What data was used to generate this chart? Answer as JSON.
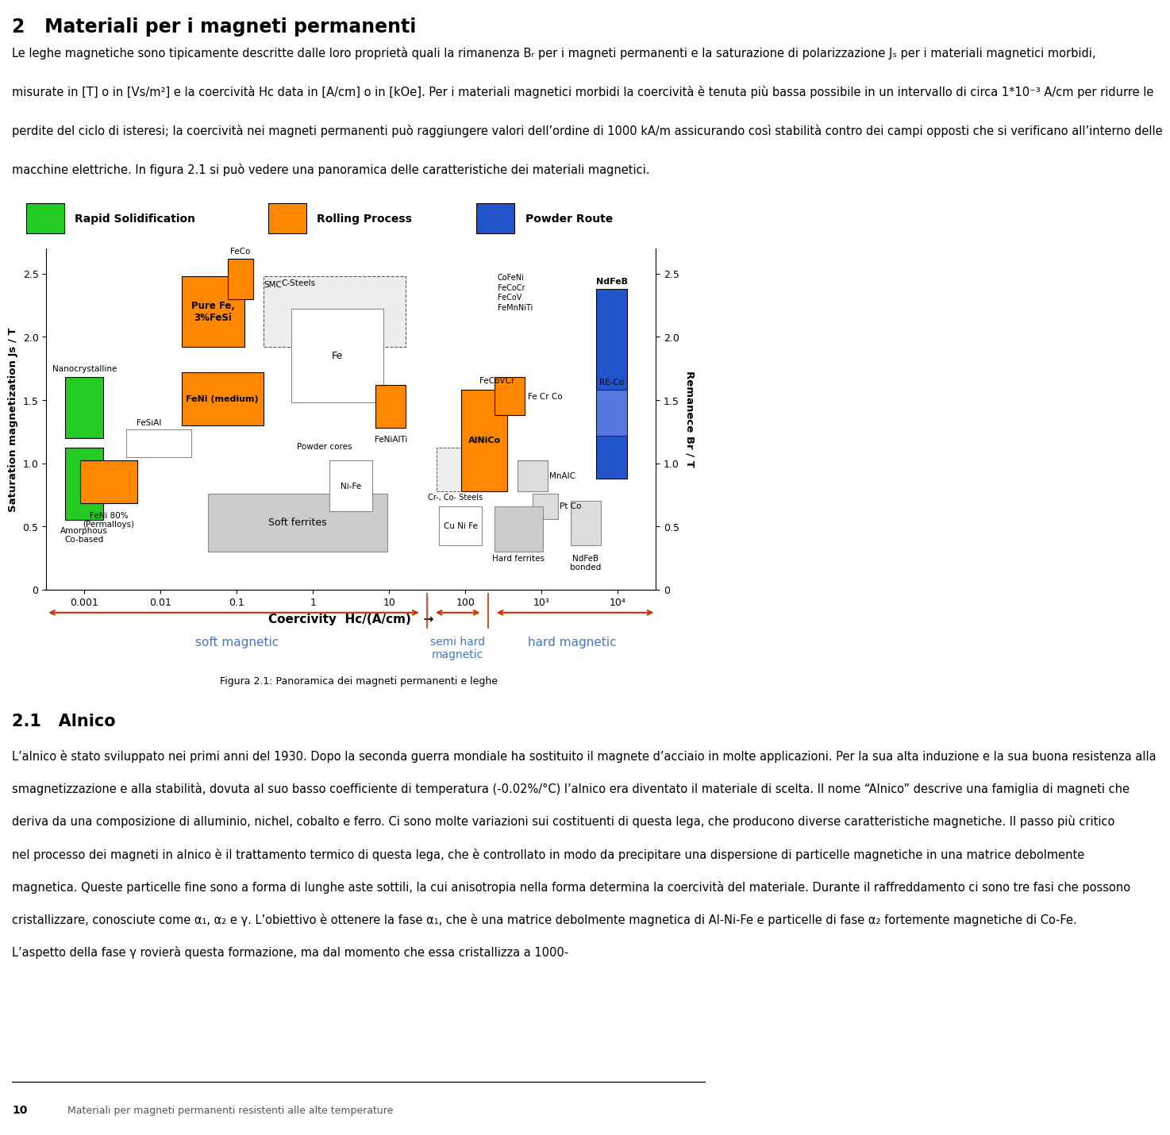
{
  "title": "2   Materiali per i magneti permanenti",
  "para1_lines": [
    "Le leghe magnetiche sono tipicamente descritte dalle loro proprietà quali la rimanenza Bᵣ per i magneti permanenti e la saturazione di polarizzazione Jₛ per i materiali magnetici morbidi,",
    "misurate in [T] o in [Vs/m²] e la coercività Hᴄ data in [A/cm] o in [kOe]. Per i materiali magnetici morbidi la coercività è tenuta più bassa possibile in un intervallo di circa 1*10⁻³ A/cm per ridurre le",
    "perdite del ciclo di isteresi; la coercività nei magneti permanenti può raggiungere valori dell’ordine di 1000 kA/m assicurando così stabilità contro dei campi opposti che si verificano all’interno delle",
    "macchine elettriche. In figura 2.1 si può vedere una panoramica delle caratteristiche dei materiali magnetici."
  ],
  "fig_caption": "Figura 2.1: Panoramica dei magneti permanenti e leghe",
  "section21": "2.1   Alnico",
  "para2_lines": [
    "L’alnico è stato sviluppato nei primi anni del 1930. Dopo la seconda guerra mondiale ha sostituito il magnete d’acciaio in molte applicazioni. Per la sua alta induzione e la sua buona resistenza alla",
    "smagnetizzazione e alla stabilità, dovuta al suo basso coefficiente di temperatura (-0.02%/°C) l’alnico era diventato il materiale di scelta. Il nome “Alnico” descrive una famiglia di magneti che",
    "deriva da una composizione di alluminio, nichel, cobalto e ferro. Ci sono molte variazioni sui costituenti di questa lega, che producono diverse caratteristiche magnetiche. Il passo più critico",
    "nel processo dei magneti in alnico è il trattamento termico di questa lega, che è controllato in modo da precipitare una dispersione di particelle magnetiche in una matrice debolmente",
    "magnetica. Queste particelle fine sono a forma di lunghe aste sottili, la cui anisotropia nella forma determina la coercività del materiale. Durante il raffreddamento ci sono tre fasi che possono",
    "cristallizzare, conosciute come α₁, α₂ e γ. L’obiettivo è ottenere la fase α₁, che è una matrice debolmente magnetica di Al-Ni-Fe e particelle di fase α₂ fortemente magnetiche di Co-Fe.",
    "L’aspetto della fase γ rovierà questa formazione, ma dal momento che essa cristallizza a 1000-"
  ],
  "footer_page": "10",
  "footer_text": "Materiali per magneti permanenti resistenti alle alte temperature",
  "legend_items": [
    {
      "label": "Rapid Solidification",
      "color": "#22cc22"
    },
    {
      "label": "Rolling Process",
      "color": "#ff8800"
    },
    {
      "label": "Powder Route",
      "color": "#2255cc"
    }
  ],
  "yaxis_label": "Saturation magnetization Js / T",
  "yaxis_right_label": "Remanece Br / T",
  "xaxis_label": "Coercivity  Hc/(A/cm)",
  "yticks": [
    0,
    0.5,
    1.0,
    1.5,
    2.0,
    2.5
  ],
  "xtick_labels": [
    "0.001",
    "0.01",
    "0.1",
    "1",
    "10",
    "100",
    "10³",
    "10⁴"
  ],
  "xtick_values": [
    -3,
    -2,
    -1,
    0,
    1,
    2,
    3,
    4
  ],
  "soft_magnetic_label": "soft magnetic",
  "semi_hard_label": "semi hard\nmagnetic",
  "hard_magnetic_label": "hard magnetic",
  "arrow_color": "#cc3300",
  "green": "#22cc22",
  "orange": "#ff8800",
  "blue_c": "#2255cc",
  "gray_light": "#cccccc",
  "gray_white": "#dddddd",
  "gray_mid": "#aaaaaa"
}
